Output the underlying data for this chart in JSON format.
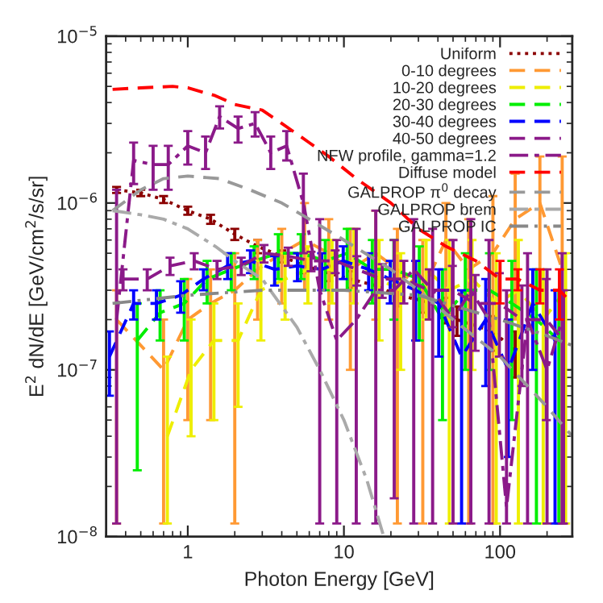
{
  "chart_data": {
    "type": "line",
    "xlabel": "Photon Energy [GeV]",
    "ylabel": "E$^{2}$ dN/dE [GeV/cm$^{2}$/s/sr]",
    "log": "xy",
    "xlim": [
      0.3,
      290
    ],
    "ylim": [
      1e-08,
      1e-05
    ],
    "xticks": [
      1,
      10,
      100
    ],
    "yticks": [
      {
        "value": 1e-08,
        "label": "10$^{−8}$"
      },
      {
        "value": 1e-07,
        "label": "10$^{−7}$"
      },
      {
        "value": 1e-06,
        "label": "10$^{−6}$"
      },
      {
        "value": 1e-05,
        "label": "10$^{−5}$"
      }
    ],
    "legend": "top right",
    "grid": false,
    "series": [
      {
        "name": "Uniform",
        "color": "#8b0000",
        "line_style": "dotted",
        "x": [
          0.35,
          0.5,
          0.7,
          1,
          1.4,
          2,
          2.8,
          4,
          5.6,
          8,
          11,
          16,
          22,
          32,
          45,
          53,
          90,
          125
        ],
        "values": [
          1.2e-06,
          1.15e-06,
          1.05e-06,
          9e-07,
          8e-07,
          6.5e-07,
          5.5e-07,
          4.8e-07,
          4.2e-07,
          3.8e-07,
          3.5e-07,
          3.2e-07,
          2.8e-07,
          2.6e-07,
          2.3e-07,
          2e-07,
          1.7e-07,
          1.3e-07
        ],
        "errors": [
          [
            1.15e-06,
            1.25e-06
          ],
          [
            1.1e-06,
            1.2e-06
          ],
          [
            1e-06,
            1.1e-06
          ],
          [
            8.5e-07,
            9.5e-07
          ],
          [
            7.5e-07,
            8.5e-07
          ],
          [
            6e-07,
            7e-07
          ],
          [
            5e-07,
            6e-07
          ],
          [
            4.4e-07,
            5.2e-07
          ],
          [
            3.8e-07,
            4.6e-07
          ],
          [
            3.4e-07,
            4.2e-07
          ],
          [
            3.1e-07,
            3.9e-07
          ],
          [
            2.8e-07,
            3.6e-07
          ],
          [
            2.4e-07,
            3.2e-07
          ],
          [
            2.2e-07,
            3e-07
          ],
          [
            1.9e-07,
            2.7e-07
          ],
          [
            1.6e-07,
            2.4e-07
          ],
          [
            1.3e-07,
            2.1e-07
          ],
          [
            9e-08,
            1.7e-07
          ]
        ]
      },
      {
        "name": "0-10 degrees",
        "color": "#ff9933",
        "line_style": "dashed",
        "x": [
          0.35,
          0.7,
          1,
          1.4,
          2,
          2.8,
          4,
          5.6,
          8,
          11,
          16,
          22,
          32,
          45,
          63,
          90,
          125,
          180,
          250
        ],
        "values": [
          2e-07,
          1e-07,
          2e-07,
          2.5e-07,
          3e-07,
          4e-07,
          5e-07,
          6e-07,
          5e-07,
          4e-07,
          5e-07,
          4e-07,
          3e-07,
          6e-07,
          4e-07,
          5e-07,
          8e-07,
          1e-06,
          4e-07
        ],
        "errors": [
          [
            1.2e-08,
            3e-07
          ],
          [
            1.2e-08,
            2e-07
          ],
          [
            5e-08,
            3.5e-07
          ],
          [
            5e-08,
            4e-07
          ],
          [
            1.2e-08,
            5e-07
          ],
          [
            2e-07,
            6e-07
          ],
          [
            2.5e-07,
            7e-07
          ],
          [
            3e-07,
            1e-06
          ],
          [
            2e-07,
            8e-07
          ],
          [
            1e-07,
            7e-07
          ],
          [
            2e-07,
            9e-07
          ],
          [
            1.2e-08,
            7e-07
          ],
          [
            1.2e-08,
            6e-07
          ],
          [
            2e-07,
            1e-06
          ],
          [
            1.2e-08,
            8e-07
          ],
          [
            1.2e-08,
            1.1e-06
          ],
          [
            2e-07,
            1.5e-06
          ],
          [
            3e-07,
            1.9e-06
          ],
          [
            1.2e-08,
            1.9e-06
          ]
        ]
      },
      {
        "name": "10-20 degrees",
        "color": "#eeee00",
        "line_style": "dashed",
        "x": [
          0.74,
          1.05,
          1.47,
          2.1,
          2.94,
          4.2,
          5.88,
          8.4,
          11.6,
          16.8,
          23.1,
          33.6,
          47.3,
          66.2,
          94.5,
          131,
          189,
          263
        ],
        "values": [
          4e-08,
          1e-07,
          1.5e-07,
          1.5e-07,
          3e-07,
          3.5e-07,
          4e-07,
          4e-07,
          4.5e-07,
          3.5e-07,
          3e-07,
          4e-07,
          3e-07,
          3.5e-07,
          2.5e-07,
          3e-07,
          2e-07,
          3e-07
        ],
        "errors": [
          [
            1.2e-08,
            1.2e-07
          ],
          [
            4e-08,
            2e-07
          ],
          [
            5e-08,
            2.5e-07
          ],
          [
            6e-08,
            2.5e-07
          ],
          [
            1.5e-07,
            4.5e-07
          ],
          [
            2e-07,
            5e-07
          ],
          [
            2.5e-07,
            5.5e-07
          ],
          [
            2.5e-07,
            6e-07
          ],
          [
            2.5e-07,
            7e-07
          ],
          [
            1.5e-07,
            6e-07
          ],
          [
            1e-07,
            5e-07
          ],
          [
            2e-07,
            6e-07
          ],
          [
            1.2e-08,
            6e-07
          ],
          [
            1e-07,
            6e-07
          ],
          [
            1.2e-08,
            5e-07
          ],
          [
            1.2e-08,
            6e-07
          ],
          [
            1.2e-08,
            4e-07
          ],
          [
            1.2e-08,
            5e-07
          ]
        ]
      },
      {
        "name": "20-30 degrees",
        "color": "#00ee00",
        "line_style": "dashed",
        "x": [
          0.475,
          0.665,
          0.95,
          1.33,
          1.9,
          2.66,
          3.8,
          5.32,
          7.6,
          10.5,
          15.2,
          20.9,
          30.4,
          42.8,
          59.9,
          85.5,
          119,
          171,
          238
        ],
        "values": [
          1.5e-07,
          2.2e-07,
          2.5e-07,
          3.5e-07,
          4e-07,
          4.5e-07,
          5e-07,
          5e-07,
          4.5e-07,
          5e-07,
          4e-07,
          4e-07,
          3.5e-07,
          2e-07,
          3e-07,
          3e-07,
          2.5e-07,
          2e-07,
          1.5e-07
        ],
        "errors": [
          [
            2.5e-08,
            2.5e-07
          ],
          [
            1.5e-07,
            3e-07
          ],
          [
            1.5e-07,
            3.5e-07
          ],
          [
            2.5e-07,
            4.5e-07
          ],
          [
            3e-07,
            5e-07
          ],
          [
            3.5e-07,
            5.5e-07
          ],
          [
            3.5e-07,
            6.5e-07
          ],
          [
            3.5e-07,
            6.5e-07
          ],
          [
            3e-07,
            6e-07
          ],
          [
            3e-07,
            7e-07
          ],
          [
            2.5e-07,
            6e-07
          ],
          [
            2e-07,
            6e-07
          ],
          [
            1.5e-07,
            5.5e-07
          ],
          [
            5e-08,
            4e-07
          ],
          [
            1e-07,
            5e-07
          ],
          [
            1e-07,
            5e-07
          ],
          [
            5e-08,
            4.5e-07
          ],
          [
            1.2e-08,
            4e-07
          ],
          [
            1.2e-08,
            3e-07
          ]
        ]
      },
      {
        "name": "30-40 degrees",
        "color": "#0000ff",
        "line_style": "dashed",
        "x": [
          0.315,
          0.45,
          0.63,
          0.9,
          1.26,
          1.8,
          2.52,
          3.6,
          5.04,
          7.2,
          9.9,
          14.4,
          19.8,
          28.8,
          40.5,
          56.7,
          81,
          113,
          162,
          225
        ],
        "values": [
          1.2e-07,
          2.5e-07,
          2.5e-07,
          2.8e-07,
          3.5e-07,
          4.2e-07,
          4.5e-07,
          4e-07,
          4.2e-07,
          4e-07,
          4.5e-07,
          4e-07,
          3.5e-07,
          3e-07,
          2.5e-07,
          1.2e-07,
          2e-07,
          1e-07,
          2.5e-07,
          1.5e-07
        ],
        "errors": [
          [
            7e-08,
            1.7e-07
          ],
          [
            2e-07,
            3e-07
          ],
          [
            2e-07,
            3e-07
          ],
          [
            2.2e-07,
            3.4e-07
          ],
          [
            3e-07,
            4e-07
          ],
          [
            3.5e-07,
            5e-07
          ],
          [
            3.8e-07,
            5.2e-07
          ],
          [
            3.2e-07,
            4.8e-07
          ],
          [
            3.4e-07,
            5e-07
          ],
          [
            3e-07,
            5e-07
          ],
          [
            3.5e-07,
            5.5e-07
          ],
          [
            3e-07,
            5e-07
          ],
          [
            2.5e-07,
            4.5e-07
          ],
          [
            1.5e-07,
            4.5e-07
          ],
          [
            1.2e-07,
            4e-07
          ],
          [
            1.2e-08,
            3e-07
          ],
          [
            8e-08,
            3.5e-07
          ],
          [
            3e-08,
            2e-07
          ],
          [
            1e-07,
            4e-07
          ],
          [
            1.2e-08,
            3e-07
          ]
        ]
      },
      {
        "name": "40-50 degrees",
        "color": "#8b1a89",
        "line_style": "dashed",
        "x": [
          0.385,
          0.55,
          0.77,
          1.1,
          1.54,
          2.2,
          3.08,
          4.4,
          6.16,
          8.8,
          12.1,
          17.6,
          24.2,
          35.2,
          49.5,
          69.3,
          99,
          138,
          198,
          255
        ],
        "values": [
          3.5e-07,
          3.5e-07,
          4.2e-07,
          4.5e-07,
          4e-07,
          4.2e-07,
          5e-07,
          4.8e-07,
          4.5e-07,
          4.5e-07,
          4e-07,
          3.5e-07,
          3.5e-07,
          3e-07,
          3e-07,
          2.5e-07,
          2.5e-07,
          2e-07,
          2e-07,
          1.5e-07
        ],
        "errors": [
          [
            3e-07,
            4e-07
          ],
          [
            3e-07,
            4e-07
          ],
          [
            3.7e-07,
            4.7e-07
          ],
          [
            4e-07,
            5e-07
          ],
          [
            3.5e-07,
            4.5e-07
          ],
          [
            3.7e-07,
            4.7e-07
          ],
          [
            4.4e-07,
            5.6e-07
          ],
          [
            4.2e-07,
            5.4e-07
          ],
          [
            3.9e-07,
            5.1e-07
          ],
          [
            3.8e-07,
            5.2e-07
          ],
          [
            3.2e-07,
            4.8e-07
          ],
          [
            2.7e-07,
            4.3e-07
          ],
          [
            2.5e-07,
            4.5e-07
          ],
          [
            2e-07,
            4e-07
          ],
          [
            1.8e-07,
            4.2e-07
          ],
          [
            1.3e-07,
            3.7e-07
          ],
          [
            1.2e-07,
            3.8e-07
          ],
          [
            8e-08,
            3.2e-07
          ],
          [
            5e-08,
            3.5e-07
          ],
          [
            1.2e-08,
            3e-07
          ]
        ]
      },
      {
        "name": "NFW profile, gamma=1.2",
        "color": "#8b1a89",
        "line_style": "dashdot",
        "x": [
          0.35,
          0.45,
          0.6,
          0.75,
          1,
          1.3,
          1.6,
          2.1,
          2.7,
          3.4,
          4.3,
          5.5,
          7,
          9,
          12,
          16,
          21,
          28,
          37,
          50,
          65,
          85,
          110,
          150,
          200,
          250
        ],
        "values": [
          2e-07,
          1.8e-06,
          1.7e-06,
          1.7e-06,
          2.2e-06,
          2e-06,
          3.3e-06,
          2.8e-06,
          3e-06,
          2e-06,
          2.2e-06,
          1e-06,
          3e-07,
          1.5e-07,
          2e-07,
          3e-07,
          3e-07,
          4e-07,
          3e-07,
          2e-07,
          3e-07,
          2e-07,
          1.5e-08,
          2e-07,
          1e-07,
          2e-07
        ],
        "errors": [
          [
            1.2e-08,
            1.2e-06
          ],
          [
            1.3e-06,
            2.3e-06
          ],
          [
            1.2e-06,
            2.2e-06
          ],
          [
            1.2e-06,
            2.2e-06
          ],
          [
            1.7e-06,
            2.7e-06
          ],
          [
            1.6e-06,
            2.5e-06
          ],
          [
            2.8e-06,
            3.8e-06
          ],
          [
            2.3e-06,
            3.3e-06
          ],
          [
            2.5e-06,
            3.5e-06
          ],
          [
            1.6e-06,
            2.5e-06
          ],
          [
            1.8e-06,
            2.7e-06
          ],
          [
            5e-07,
            1.5e-06
          ],
          [
            1.2e-08,
            8e-07
          ],
          [
            1.2e-08,
            6e-07
          ],
          [
            1.2e-08,
            7e-07
          ],
          [
            1.2e-08,
            9e-07
          ],
          [
            1.7e-08,
            6e-07
          ],
          [
            1.2e-08,
            8e-07
          ],
          [
            1.2e-08,
            7e-07
          ],
          [
            1.2e-08,
            6e-07
          ],
          [
            1.2e-08,
            8e-07
          ],
          [
            1.2e-08,
            6e-07
          ],
          [
            1.2e-08,
            3e-07
          ],
          [
            1.2e-08,
            5e-07
          ],
          [
            1.2e-08,
            4e-07
          ],
          [
            1.2e-08,
            5e-07
          ]
        ]
      },
      {
        "name": "Diffuse model",
        "color": "#ff0000",
        "line_style": "dashed",
        "x": [
          0.33,
          0.5,
          0.8,
          1,
          1.5,
          2,
          3,
          4,
          6,
          8,
          12,
          20,
          30,
          45,
          70,
          100,
          130,
          180,
          240,
          290
        ],
        "values": [
          4.8e-06,
          4.9e-06,
          5e-06,
          4.9e-06,
          4.4e-06,
          3.9e-06,
          3.6e-06,
          3e-06,
          2.3e-06,
          1.9e-06,
          1.4e-06,
          1e-06,
          7e-07,
          5.5e-07,
          4.5e-07,
          3.5e-07,
          3.5e-07,
          3e-07,
          3e-07,
          2.5e-07
        ],
        "errors": [
          null,
          null,
          null,
          null,
          null,
          null,
          null,
          null,
          null,
          null,
          null,
          null,
          null,
          null,
          null,
          [
            2.5e-07,
            4.5e-07
          ],
          [
            3e-07,
            4e-07
          ],
          [
            2.5e-07,
            4e-07
          ],
          [
            2e-07,
            4e-07
          ],
          null
        ]
      },
      {
        "name": "GALPROP π$^{0}$ decay",
        "color": "#999999",
        "line_style": "dashed",
        "x": [
          0.33,
          0.5,
          0.7,
          1,
          1.6,
          2.5,
          4,
          6,
          10,
          20,
          30,
          50,
          100,
          200,
          290
        ],
        "values": [
          9e-07,
          1.2e-06,
          1.4e-06,
          1.45e-06,
          1.4e-06,
          1.2e-06,
          1e-06,
          8e-07,
          6e-07,
          4e-07,
          3e-07,
          2e-07,
          1.2e-07,
          6e-08,
          4e-08
        ]
      },
      {
        "name": "GALPROP brem",
        "color": "#aaaaaa",
        "line_style": "dashdot",
        "x": [
          0.33,
          0.5,
          0.7,
          1,
          1.5,
          2,
          3,
          5,
          7,
          10,
          14,
          18
        ],
        "values": [
          9e-07,
          8.5e-07,
          8e-07,
          7e-07,
          5.5e-07,
          4.5e-07,
          3.5e-07,
          1.8e-07,
          1e-07,
          5e-08,
          2.2e-08,
          1e-08
        ]
      },
      {
        "name": "GALPROP IC",
        "color": "#888888",
        "line_style": "dashdotdot",
        "x": [
          0.33,
          1,
          3,
          10,
          30,
          100,
          200,
          290
        ],
        "values": [
          2.5e-07,
          2.8e-07,
          3e-07,
          3e-07,
          2.8e-07,
          2e-07,
          1.6e-07,
          1.4e-07
        ]
      }
    ]
  }
}
